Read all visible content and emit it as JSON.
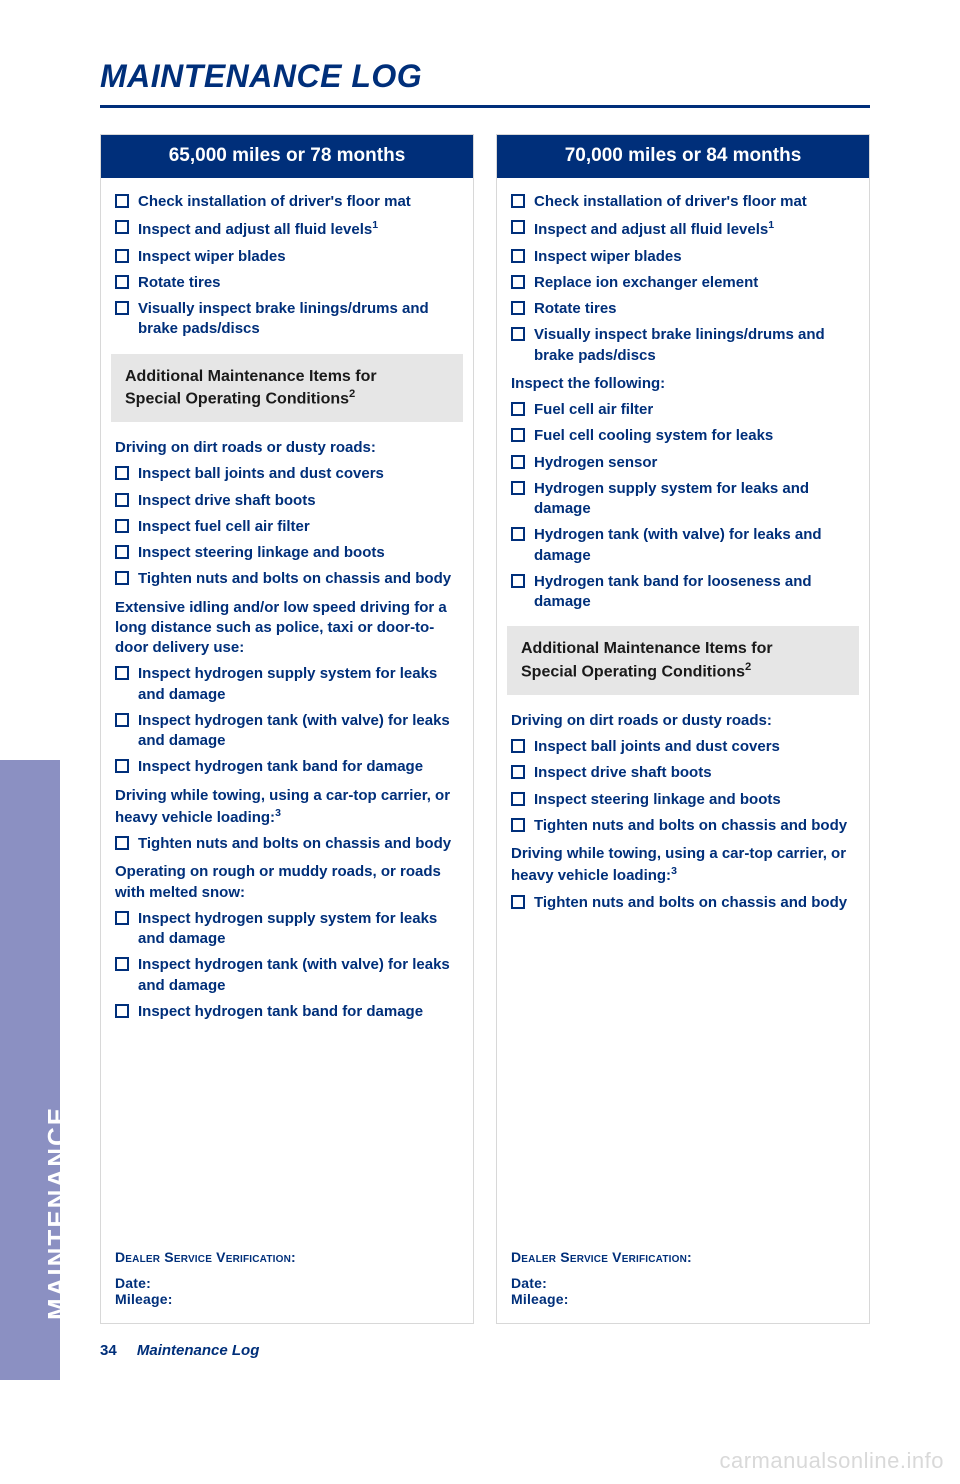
{
  "colors": {
    "brand_blue": "#002f7a",
    "tab_purple": "#8b90c2",
    "subbox_gray": "#e6e6e6",
    "card_border": "#d8d8d8",
    "watermark": "#d9d9d9",
    "page_bg": "#ffffff"
  },
  "page": {
    "title": "MAINTENANCE LOG",
    "side_tab": "MAINTENANCE",
    "footer_number": "34",
    "footer_section": "Maintenance Log",
    "watermark": "carmanualsonline.info"
  },
  "left": {
    "header": "65,000 miles or 78 months",
    "main_items": [
      {
        "text": "Check installation of driver's floor mat"
      },
      {
        "text": "Inspect and adjust all fluid levels",
        "sup": "1"
      },
      {
        "text": "Inspect wiper blades"
      },
      {
        "text": "Rotate tires"
      },
      {
        "text": "Visually inspect brake linings/drums and brake pads/discs"
      }
    ],
    "subbox_line1": "Additional Maintenance Items for",
    "subbox_line2": "Special Operating Conditions",
    "subbox_sup": "2",
    "sections": [
      {
        "heading": "Driving on dirt roads or dusty roads:",
        "items": [
          "Inspect ball joints and dust covers",
          "Inspect drive shaft boots",
          "Inspect fuel cell air filter",
          "Inspect steering linkage and boots",
          "Tighten nuts and bolts on chassis and body"
        ]
      },
      {
        "heading": "Extensive idling and/or low speed driving for a long distance such as police, taxi or door-to-door delivery use:",
        "items": [
          "Inspect hydrogen supply system for leaks and damage",
          "Inspect hydrogen tank (with valve) for leaks and damage",
          "Inspect hydrogen tank band for damage"
        ]
      },
      {
        "heading": "Driving while towing, using a car-top carrier, or heavy vehicle loading:",
        "heading_sup": "3",
        "items": [
          "Tighten nuts and bolts on chassis and body"
        ]
      },
      {
        "heading": "Operating on rough or muddy roads, or roads with melted snow:",
        "items": [
          "Inspect hydrogen supply system for leaks and damage",
          "Inspect hydrogen tank (with valve) for leaks and damage",
          "Inspect hydrogen tank band for damage"
        ]
      }
    ],
    "dealer_header": "Dealer Service Verification:",
    "dealer_date": "Date:",
    "dealer_mileage": "Mileage:"
  },
  "right": {
    "header": "70,000 miles or 84 months",
    "main_items": [
      {
        "text": "Check installation of driver's floor mat"
      },
      {
        "text": "Inspect and adjust all fluid levels",
        "sup": "1"
      },
      {
        "text": "Inspect wiper blades"
      },
      {
        "text": "Replace ion exchanger element"
      },
      {
        "text": "Rotate tires"
      },
      {
        "text": "Visually inspect brake linings/drums and brake pads/discs"
      }
    ],
    "inspect_heading": "Inspect the following:",
    "inspect_items": [
      "Fuel cell air filter",
      "Fuel cell cooling system for leaks",
      "Hydrogen sensor",
      "Hydrogen supply system for leaks and damage",
      "Hydrogen tank (with valve) for leaks and damage",
      "Hydrogen tank band for looseness and damage"
    ],
    "subbox_line1": "Additional Maintenance Items for",
    "subbox_line2": "Special Operating Conditions",
    "subbox_sup": "2",
    "sections": [
      {
        "heading": "Driving on dirt roads or dusty roads:",
        "items": [
          "Inspect ball joints and dust covers",
          "Inspect drive shaft boots",
          "Inspect steering linkage and boots",
          "Tighten nuts and bolts on chassis and body"
        ]
      },
      {
        "heading": "Driving while towing, using a car-top carrier, or heavy vehicle loading:",
        "heading_sup": "3",
        "items": [
          "Tighten nuts and bolts on chassis and body"
        ]
      }
    ],
    "dealer_header": "Dealer Service Verification:",
    "dealer_date": "Date:",
    "dealer_mileage": "Mileage:"
  }
}
